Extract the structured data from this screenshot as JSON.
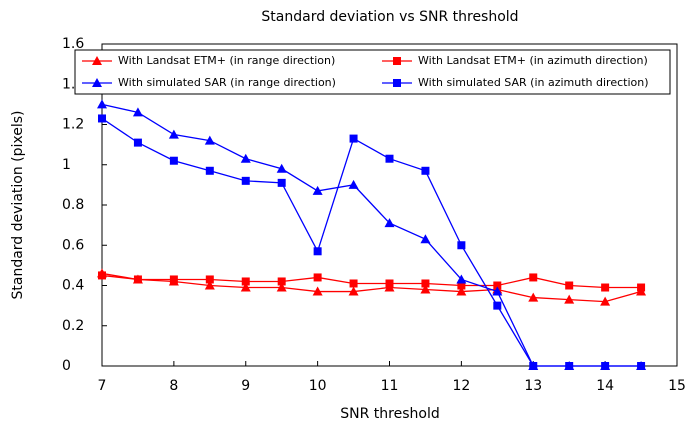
{
  "chart_data": {
    "type": "line",
    "title": "Standard deviation vs SNR threshold",
    "x_label": "SNR threshold",
    "y_label": "Standard deviation (pixels)",
    "x": [
      7,
      7.5,
      8,
      8.5,
      9,
      9.5,
      10,
      10.5,
      11,
      11.5,
      12,
      12.5,
      13,
      13.5,
      14,
      14.5
    ],
    "series": [
      {
        "name": "With Landsat ETM+ (in range direction)",
        "color": "#ff0000",
        "marker": "triangle",
        "values": [
          0.46,
          0.43,
          0.42,
          0.4,
          0.39,
          0.39,
          0.37,
          0.37,
          0.39,
          0.38,
          0.37,
          0.38,
          0.34,
          0.33,
          0.32,
          0.37
        ]
      },
      {
        "name": "With Landsat ETM+ (in azimuth direction)",
        "color": "#ff0000",
        "marker": "square",
        "values": [
          0.45,
          0.43,
          0.43,
          0.43,
          0.42,
          0.42,
          0.44,
          0.41,
          0.41,
          0.41,
          0.4,
          0.4,
          0.44,
          0.4,
          0.39,
          0.39
        ]
      },
      {
        "name": "With simulated SAR (in range direction)",
        "color": "#0000ff",
        "marker": "triangle",
        "values": [
          1.3,
          1.26,
          1.15,
          1.12,
          1.03,
          0.98,
          0.87,
          0.9,
          0.71,
          0.63,
          0.43,
          0.37,
          0,
          0,
          0,
          0
        ]
      },
      {
        "name": "With simulated SAR (in azimuth direction)",
        "color": "#0000ff",
        "marker": "square",
        "values": [
          1.23,
          1.11,
          1.02,
          0.97,
          0.92,
          0.91,
          0.57,
          1.13,
          1.03,
          0.97,
          0.6,
          0.3,
          0,
          0,
          0,
          0
        ]
      }
    ],
    "xlim": [
      7,
      15
    ],
    "xticks": [
      7,
      8,
      9,
      10,
      11,
      12,
      13,
      14,
      15
    ],
    "ylim": [
      0,
      1.6
    ],
    "yticks": [
      0,
      0.2,
      0.4,
      0.6,
      0.8,
      1,
      1.2,
      1.4,
      1.6
    ],
    "grid": false,
    "legend": "top"
  }
}
